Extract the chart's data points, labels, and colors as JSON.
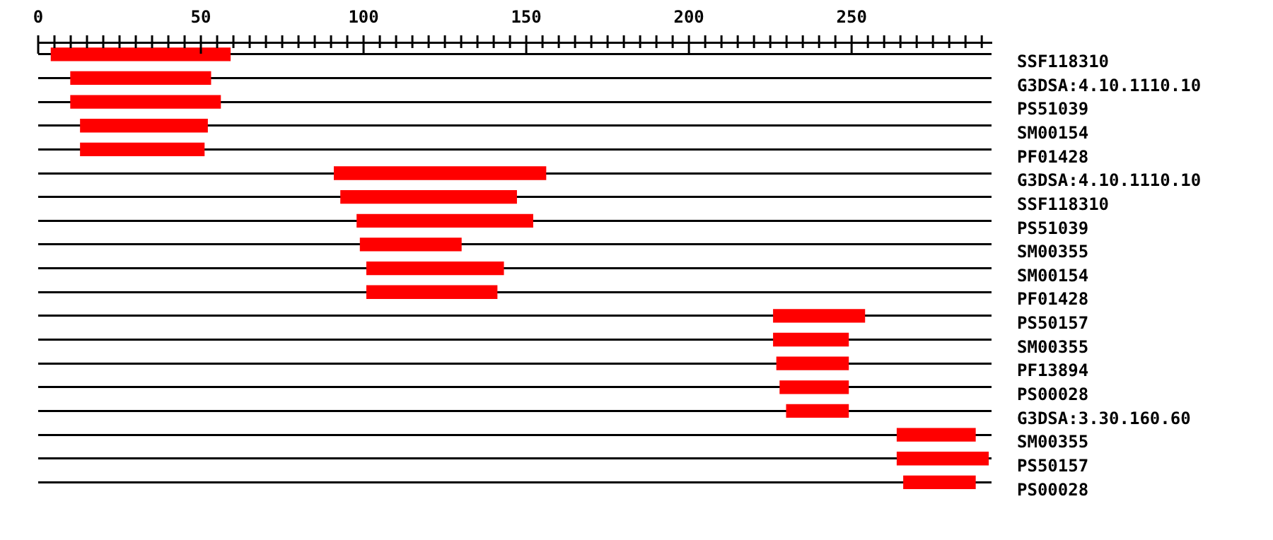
{
  "chart_data": {
    "type": "bar",
    "orientation": "horizontal",
    "categories": [
      "SSF118310",
      "G3DSA:4.10.1110.10",
      "PS51039",
      "SM00154",
      "PF01428",
      "G3DSA:4.10.1110.10",
      "SSF118310",
      "PS51039",
      "SM00355",
      "SM00154",
      "PF01428",
      "PS50157",
      "SM00355",
      "PF13894",
      "PS00028",
      "G3DSA:3.30.160.60",
      "SM00355",
      "PS50157",
      "PS00028"
    ],
    "base": [
      4,
      10,
      10,
      13,
      13,
      91,
      93,
      98,
      99,
      101,
      101,
      226,
      226,
      227,
      228,
      230,
      264,
      264,
      266
    ],
    "values": [
      55,
      43,
      46,
      39,
      38,
      65,
      54,
      54,
      31,
      42,
      40,
      28,
      23,
      22,
      21,
      19,
      24,
      28,
      22
    ],
    "color": "#ff0000",
    "xlim": [
      0,
      293
    ],
    "xticks": [
      0,
      {
        "value": 5,
        "label": null
      },
      {
        "value": 10,
        "label": null
      },
      {
        "value": 15,
        "label": null
      },
      {
        "value": 20,
        "label": null
      },
      {
        "value": 25,
        "label": null
      },
      {
        "value": 30,
        "label": null
      },
      {
        "value": 35,
        "label": null
      },
      {
        "value": 40,
        "label": null
      },
      {
        "value": 45,
        "label": null
      },
      50,
      {
        "value": 55,
        "label": null
      },
      {
        "value": 60,
        "label": null
      },
      {
        "value": 65,
        "label": null
      },
      {
        "value": 70,
        "label": null
      },
      {
        "value": 75,
        "label": null
      },
      {
        "value": 80,
        "label": null
      },
      {
        "value": 85,
        "label": null
      },
      {
        "value": 90,
        "label": null
      },
      {
        "value": 95,
        "label": null
      },
      100,
      {
        "value": 105,
        "label": null
      },
      {
        "value": 110,
        "label": null
      },
      {
        "value": 115,
        "label": null
      },
      {
        "value": 120,
        "label": null
      },
      {
        "value": 125,
        "label": null
      },
      {
        "value": 130,
        "label": null
      },
      {
        "value": 135,
        "label": null
      },
      {
        "value": 140,
        "label": null
      },
      {
        "value": 145,
        "label": null
      },
      150,
      {
        "value": 155,
        "label": null
      },
      {
        "value": 160,
        "label": null
      },
      {
        "value": 165,
        "label": null
      },
      {
        "value": 170,
        "label": null
      },
      {
        "value": 175,
        "label": null
      },
      {
        "value": 180,
        "label": null
      },
      {
        "value": 185,
        "label": null
      },
      {
        "value": 190,
        "label": null
      },
      {
        "value": 195,
        "label": null
      },
      200,
      {
        "value": 205,
        "label": null
      },
      {
        "value": 210,
        "label": null
      },
      {
        "value": 215,
        "label": null
      },
      {
        "value": 220,
        "label": null
      },
      {
        "value": 225,
        "label": null
      },
      {
        "value": 230,
        "label": null
      },
      {
        "value": 235,
        "label": null
      },
      {
        "value": 240,
        "label": null
      },
      {
        "value": 245,
        "label": null
      },
      250,
      {
        "value": 255,
        "label": null
      },
      {
        "value": 260,
        "label": null
      },
      {
        "value": 265,
        "label": null
      },
      {
        "value": 270,
        "label": null
      },
      {
        "value": 275,
        "label": null
      },
      {
        "value": 280,
        "label": null
      },
      {
        "value": 285,
        "label": null
      },
      {
        "value": 290,
        "label": null
      }
    ],
    "grid": "y",
    "legend": false
  }
}
